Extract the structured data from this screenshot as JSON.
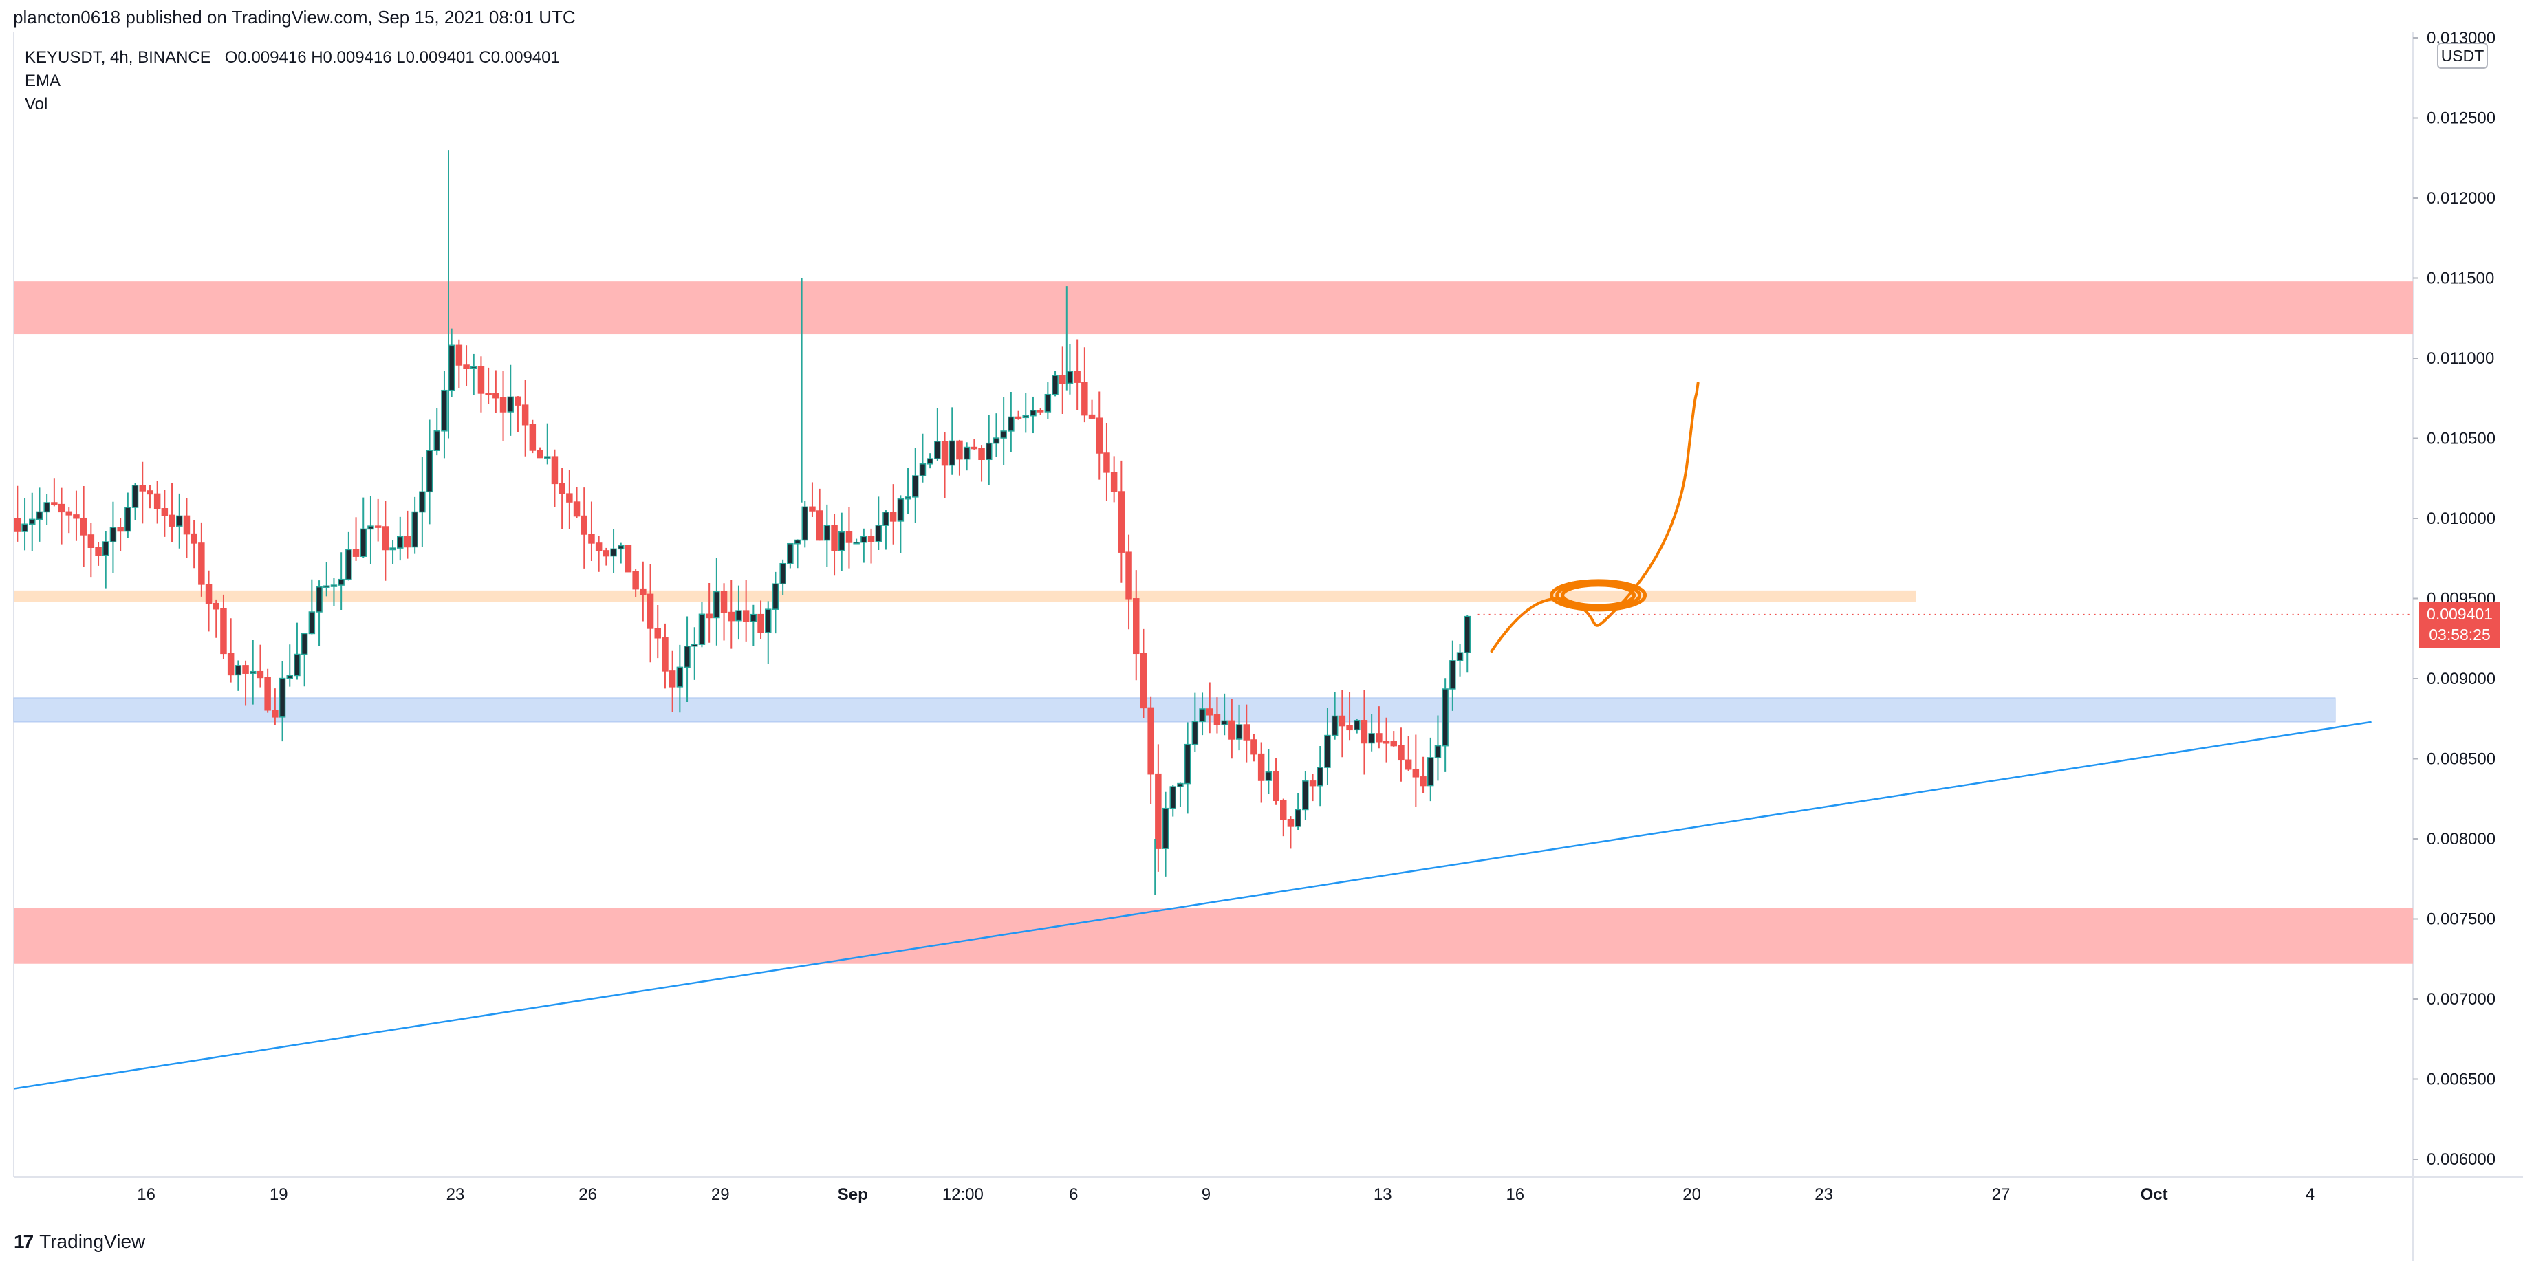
{
  "header": {
    "published": "plancton0618 published on TradingView.com, Sep 15, 2021 08:01 UTC"
  },
  "legend": {
    "symbol": "KEYUSDT, 4h, BINANCE",
    "ohlc": "O0.009416  H0.009416  L0.009401  C0.009401",
    "indicator1": "EMA",
    "indicator2": "Vol"
  },
  "price_axis": {
    "currency": "USDT",
    "last_price": "0.009401",
    "countdown": "03:58:25"
  },
  "footer": {
    "brand": "TradingView",
    "logo_mark": "17"
  },
  "colors": {
    "up": "#26a69a",
    "down": "#ef5350",
    "candle_body_up": "#1d2a32",
    "resistance_zone": "#ffb3b3",
    "support_zone": "#c6d9f7",
    "key_level_zone": "#ffdcba",
    "trendline": "#2196f3",
    "drawing": "#f57c00"
  },
  "chart_data": {
    "type": "candlestick",
    "symbol": "KEYUSDT",
    "interval": "4h",
    "exchange": "BINANCE",
    "ylim": [
      0.006,
      0.0131
    ],
    "y_ticks": [
      "0.006000",
      "0.006500",
      "0.007000",
      "0.007500",
      "0.008000",
      "0.008500",
      "0.009000",
      "0.009500",
      "0.010000",
      "0.010500",
      "0.011000",
      "0.011500",
      "0.012000",
      "0.012500",
      "0.013000"
    ],
    "x_ticks": [
      "16",
      "19",
      "23",
      "26",
      "29",
      "Sep",
      "12:00",
      "6",
      "9",
      "13",
      "16",
      "20",
      "23",
      "27",
      "Oct",
      "4"
    ],
    "zones": [
      {
        "kind": "resistance",
        "from": 0.01115,
        "to": 0.01148
      },
      {
        "kind": "key_level",
        "from": 0.00948,
        "to": 0.00955
      },
      {
        "kind": "support",
        "from": 0.00873,
        "to": 0.00888
      },
      {
        "kind": "resistance",
        "from": 0.00722,
        "to": 0.00757
      }
    ],
    "trendline": [
      {
        "x": "Aug 13",
        "y": 0.00644
      },
      {
        "x": "Oct 5",
        "y": 0.00873
      }
    ],
    "price_path": [
      {
        "x": "Aug 13",
        "y": 0.01
      },
      {
        "x": "Aug 14",
        "y": 0.01005
      },
      {
        "x": "Aug 15",
        "y": 0.0098
      },
      {
        "x": "Aug 16",
        "y": 0.0102
      },
      {
        "x": "Aug 17",
        "y": 0.0099
      },
      {
        "x": "Aug 18",
        "y": 0.0091
      },
      {
        "x": "Aug 19",
        "y": 0.00885
      },
      {
        "x": "Aug 20",
        "y": 0.0095
      },
      {
        "x": "Aug 21",
        "y": 0.0099
      },
      {
        "x": "Aug 22",
        "y": 0.0098
      },
      {
        "x": "Aug 23",
        "y": 0.011
      },
      {
        "x": "Aug 24",
        "y": 0.0108
      },
      {
        "x": "Aug 25",
        "y": 0.01045
      },
      {
        "x": "Aug 26",
        "y": 0.00995
      },
      {
        "x": "Aug 27",
        "y": 0.0097
      },
      {
        "x": "Aug 28",
        "y": 0.00895
      },
      {
        "x": "Aug 29",
        "y": 0.0095
      },
      {
        "x": "Aug 30",
        "y": 0.0093
      },
      {
        "x": "Aug 31",
        "y": 0.01
      },
      {
        "x": "Sep 1",
        "y": 0.0098
      },
      {
        "x": "Sep 2",
        "y": 0.01
      },
      {
        "x": "Sep 3",
        "y": 0.0104
      },
      {
        "x": "Sep 4",
        "y": 0.01045
      },
      {
        "x": "Sep 5",
        "y": 0.0106
      },
      {
        "x": "Sep 6",
        "y": 0.011
      },
      {
        "x": "Sep 7",
        "y": 0.0102
      },
      {
        "x": "Sep 8",
        "y": 0.008
      },
      {
        "x": "Sep 9",
        "y": 0.0088
      },
      {
        "x": "Sep 10",
        "y": 0.0086
      },
      {
        "x": "Sep 11",
        "y": 0.0081
      },
      {
        "x": "Sep 12",
        "y": 0.0087
      },
      {
        "x": "Sep 13",
        "y": 0.0086
      },
      {
        "x": "Sep 14",
        "y": 0.0083
      },
      {
        "x": "Sep 15",
        "y": 0.0094
      }
    ]
  }
}
